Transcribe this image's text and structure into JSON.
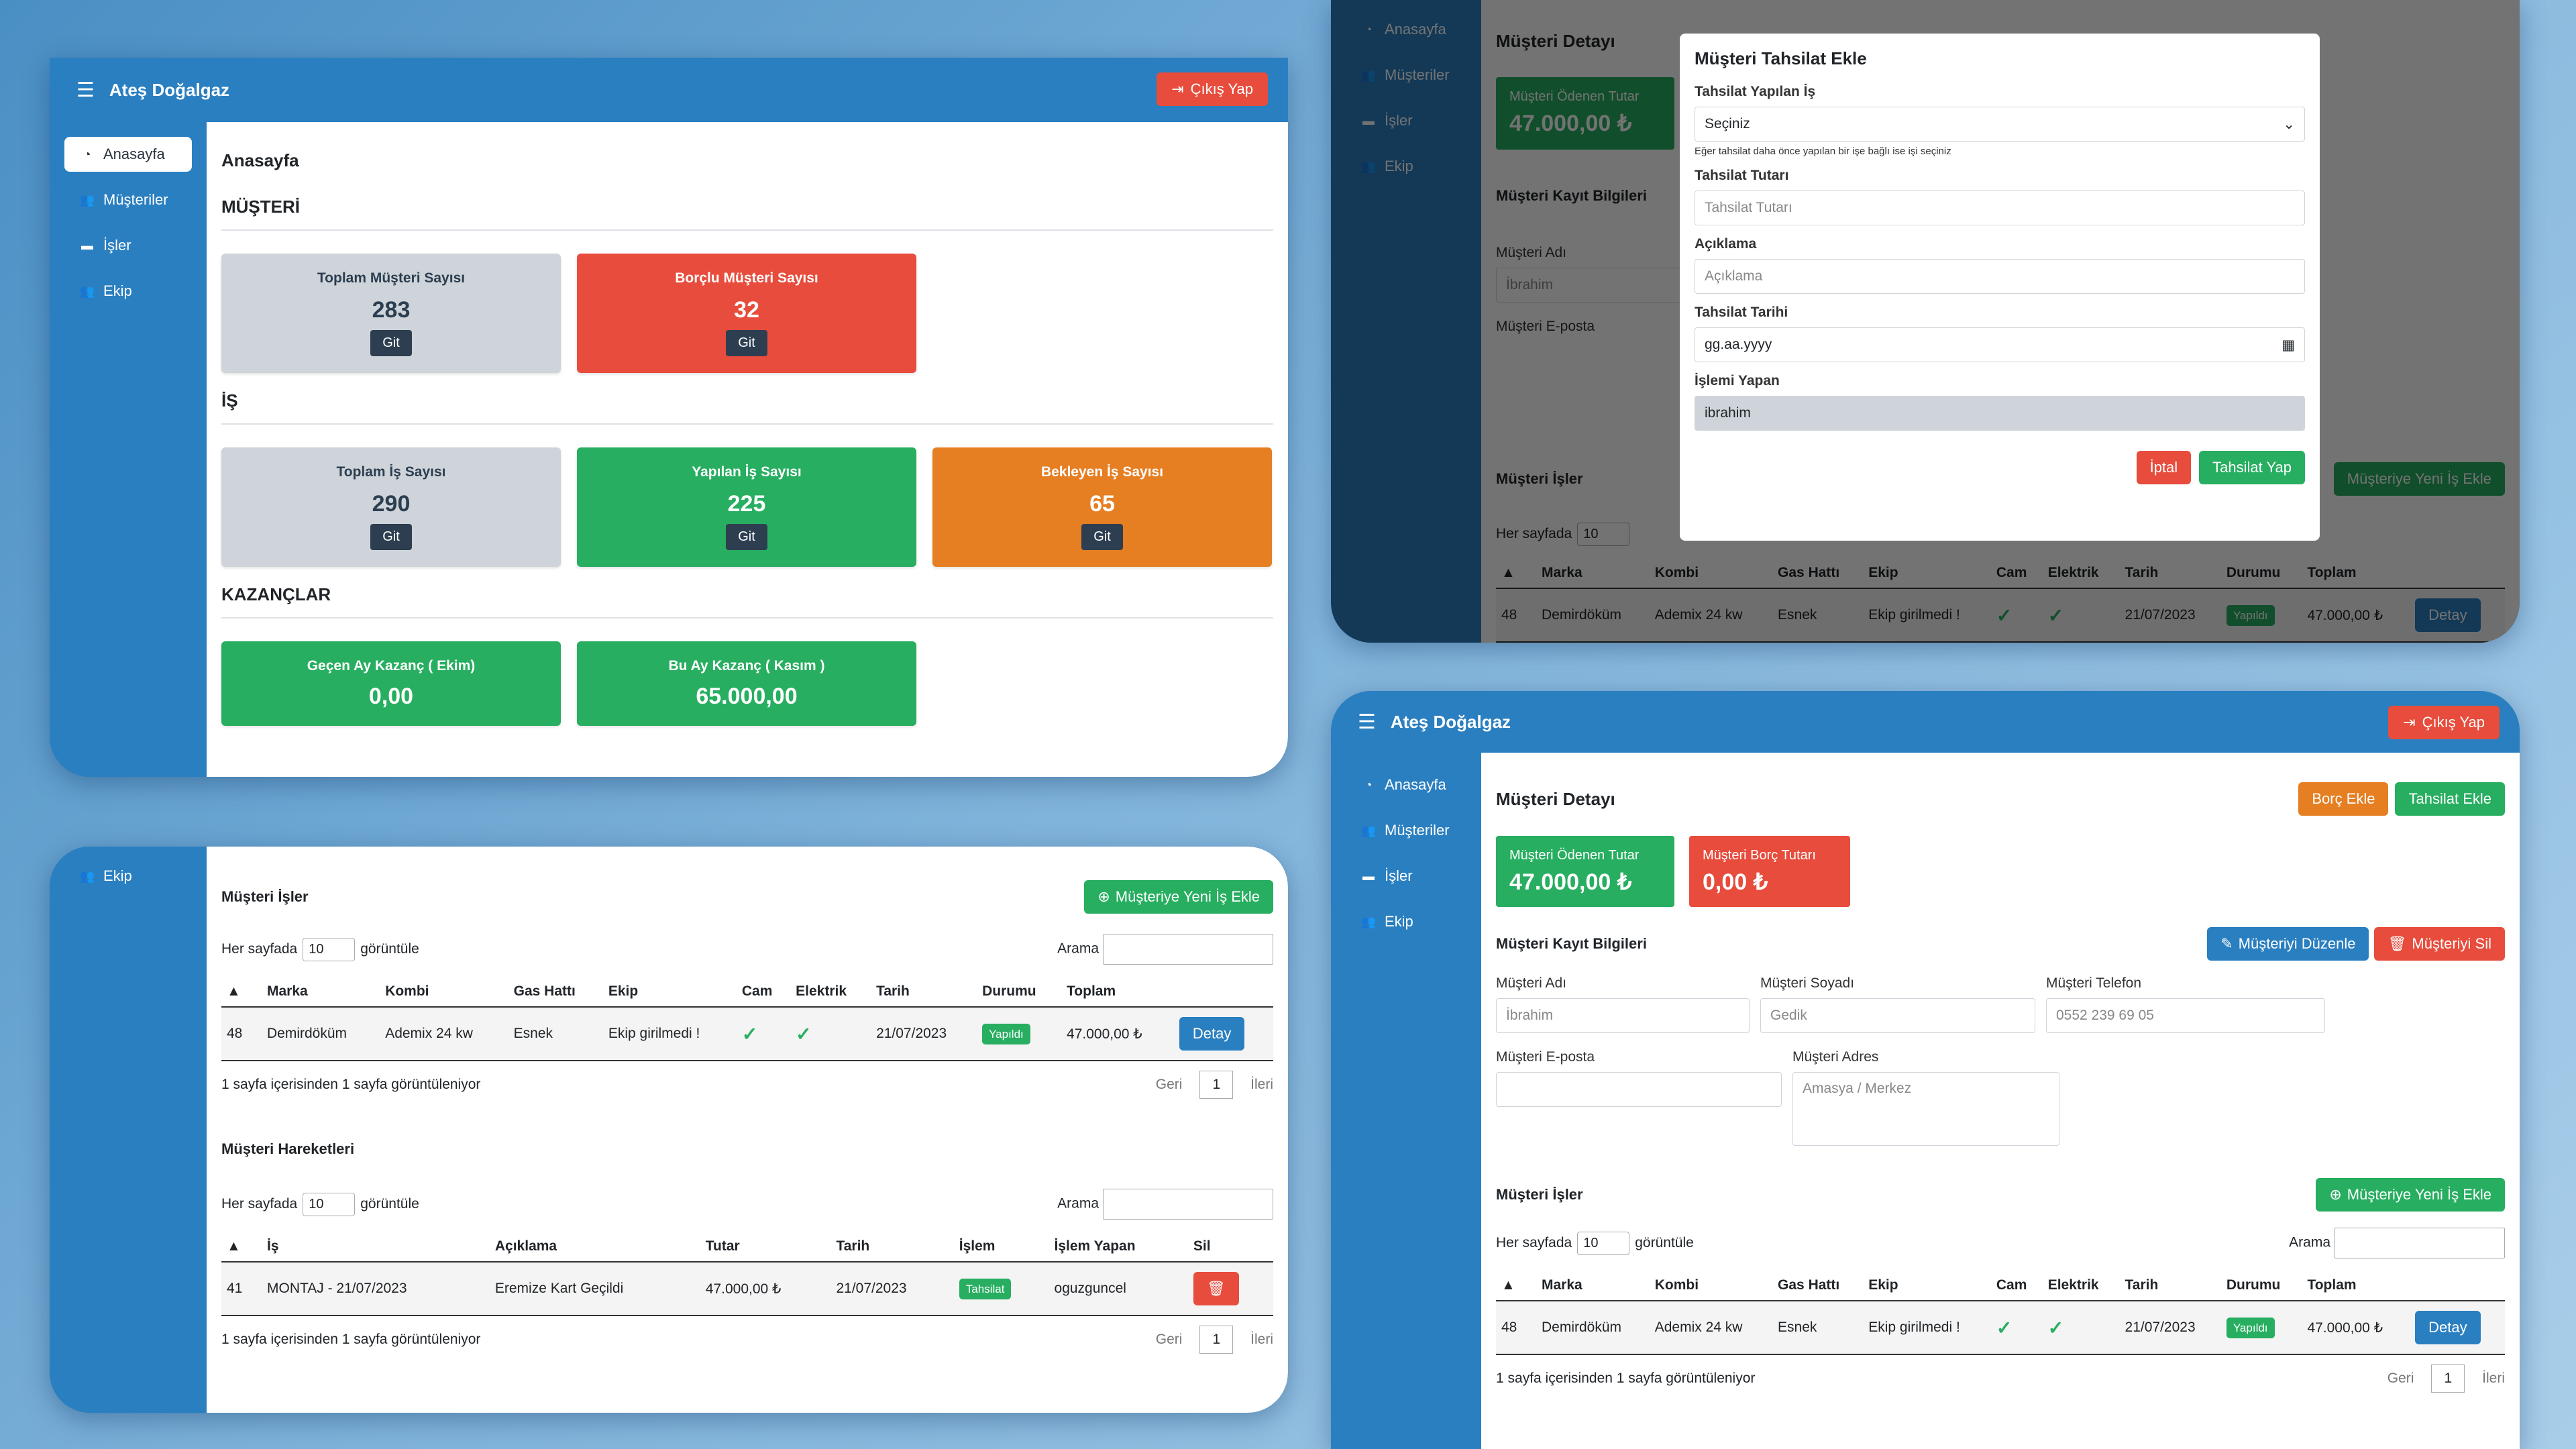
{
  "app": {
    "brand": "Ateş Doğalgaz",
    "logout": "Çıkış Yap"
  },
  "nav": {
    "home": "Anasayfa",
    "customers": "Müşteriler",
    "jobs": "İşler",
    "team": "Ekip"
  },
  "dashboard": {
    "title": "Anasayfa",
    "sec_customer": "MÜŞTERİ",
    "sec_job": "İŞ",
    "sec_earn": "KAZANÇLAR",
    "go": "Git",
    "cards": {
      "total_customers": {
        "title": "Toplam Müşteri Sayısı",
        "value": "283"
      },
      "debt_customers": {
        "title": "Borçlu Müşteri Sayısı",
        "value": "32"
      },
      "total_jobs": {
        "title": "Toplam İş Sayısı",
        "value": "290"
      },
      "done_jobs": {
        "title": "Yapılan İş Sayısı",
        "value": "225"
      },
      "waiting_jobs": {
        "title": "Bekleyen İş Sayısı",
        "value": "65"
      },
      "last_month": {
        "title": "Geçen Ay Kazanç ( Ekim)",
        "value": "0,00"
      },
      "this_month": {
        "title": "Bu Ay Kazanç ( Kasım )",
        "value": "65.000,00"
      }
    }
  },
  "common": {
    "per_page": "Her sayfada",
    "show": "görüntüle",
    "per_page_value": "10",
    "search": "Arama",
    "info": "1 sayfa içerisinden 1 sayfa görüntüleniyor",
    "prev": "Geri",
    "page": "1",
    "next": "İleri",
    "add_job": "Müşteriye Yeni İş Ekle",
    "detail": "Detay"
  },
  "jobs": {
    "title": "Müşteri İşler",
    "headers": [
      "Marka",
      "Kombi",
      "Gas Hattı",
      "Ekip",
      "Cam",
      "Elektrik",
      "Tarih",
      "Durumu",
      "Toplam"
    ],
    "row": {
      "id": "48",
      "brand": "Demirdöküm",
      "kombi": "Ademix 24 kw",
      "gas": "Esnek",
      "team": "Ekip girilmedi !",
      "date": "21/07/2023",
      "status": "Yapıldı",
      "total": "47.000,00 ₺"
    }
  },
  "moves": {
    "title": "Müşteri Hareketleri",
    "headers": [
      "İş",
      "Açıklama",
      "Tutar",
      "Tarih",
      "İşlem",
      "İşlem Yapan",
      "Sil"
    ],
    "row": {
      "id": "41",
      "job": "MONTAJ - 21/07/2023",
      "desc": "Eremize Kart Geçildi",
      "amount": "47.000,00 ₺",
      "date": "21/07/2023",
      "op": "Tahsilat",
      "user": "oguzguncel"
    }
  },
  "detail": {
    "title": "Müşteri Detayı",
    "add_debt": "Borç Ekle",
    "add_payment": "Tahsilat Ekle",
    "paid": {
      "label": "Müşteri Ödenen Tutar",
      "value": "47.000,00 ₺"
    },
    "debt": {
      "label": "Müşteri Borç Tutarı",
      "value": "0,00 ₺"
    },
    "reg_title": "Müşteri Kayıt Bilgileri",
    "edit": "Müşteriyi Düzenle",
    "delete": "Müşteriyi Sil",
    "name_l": "Müşteri Adı",
    "name_v": "İbrahim",
    "surname_l": "Müşteri Soyadı",
    "surname_v": "Gedik",
    "phone_l": "Müşteri Telefon",
    "phone_v": "0552 239 69 05",
    "email_l": "Müşteri E-posta",
    "addr_l": "Müşteri Adres",
    "addr_v": "Amasya / Merkez"
  },
  "modal": {
    "title": "Müşteri Tahsilat Ekle",
    "job_l": "Tahsilat Yapılan İş",
    "job_v": "Seçiniz",
    "hint": "Eğer tahsilat daha önce yapılan bir işe bağlı ise işi seçiniz",
    "amount_l": "Tahsilat Tutarı",
    "amount_ph": "Tahsilat Tutarı",
    "desc_l": "Açıklama",
    "desc_ph": "Açıklama",
    "date_l": "Tahsilat Tarihi",
    "date_v": "gg.aa.yyyy",
    "user_l": "İşlemi Yapan",
    "user_v": "ibrahim",
    "cancel": "İptal",
    "submit": "Tahsilat Yap"
  },
  "colors": {
    "primary": "#2a7fc0",
    "success": "#27ae60",
    "danger": "#e74c3c",
    "warning": "#e67e22",
    "muted": "#ced4da"
  }
}
